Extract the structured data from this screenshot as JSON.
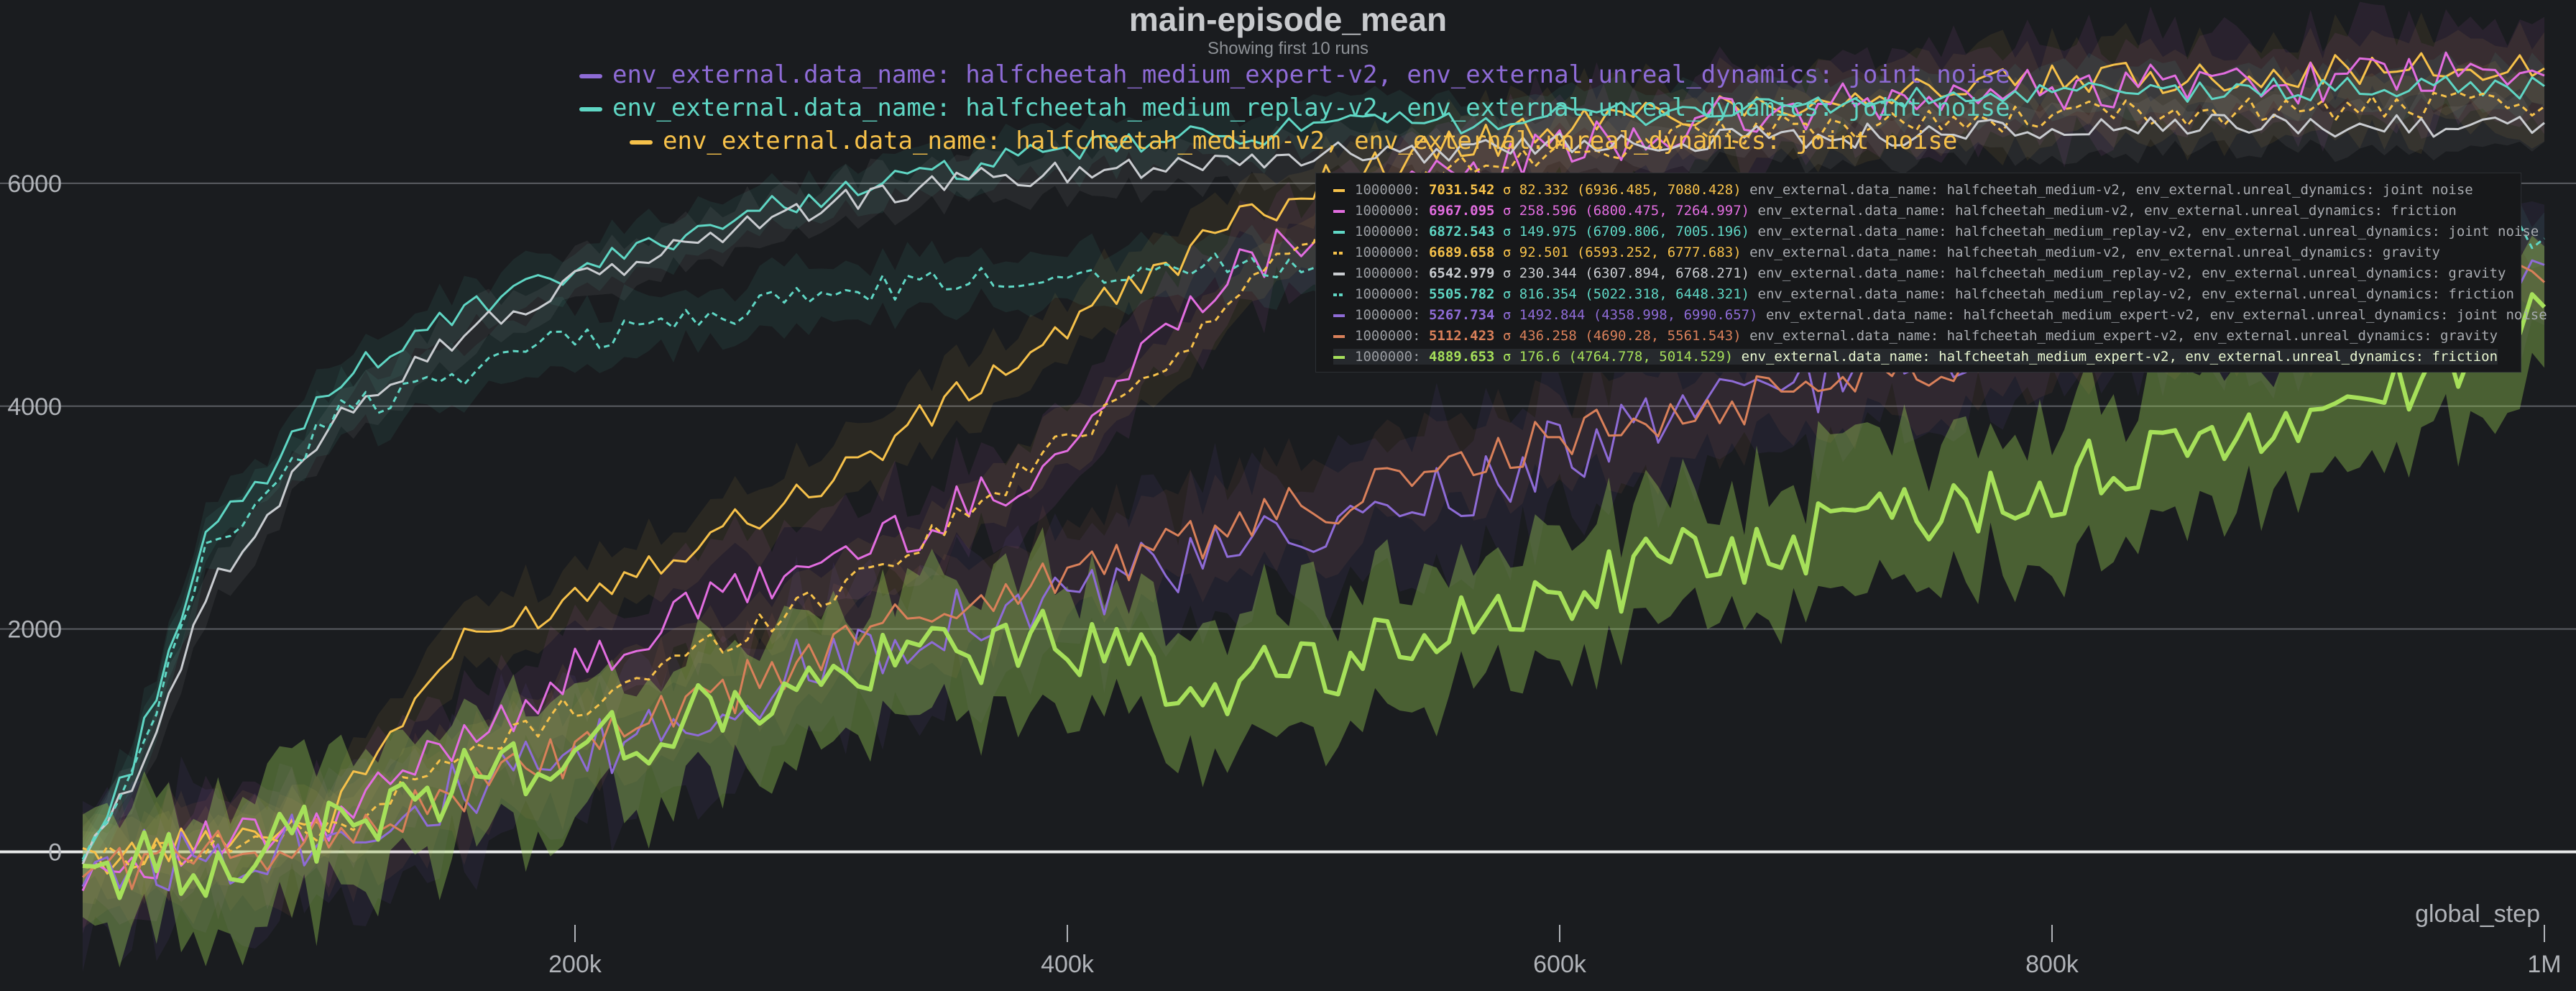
{
  "chart_data": {
    "type": "line",
    "title": "main-episode_mean",
    "subtitle": "Showing first 10 runs",
    "xlabel": "global_step",
    "ylabel": "",
    "xlim": [
      0,
      1000000
    ],
    "ylim": [
      -500,
      7000
    ],
    "x_ticks": [
      200000,
      400000,
      600000,
      800000,
      1000000
    ],
    "x_tick_labels": [
      "200k",
      "400k",
      "600k",
      "800k",
      "1M"
    ],
    "y_ticks": [
      0,
      2000,
      4000,
      6000
    ],
    "y_tick_labels": [
      "0",
      "2000",
      "4000",
      "6000"
    ],
    "grid": true,
    "legend_position": "top-center",
    "legend": [
      {
        "label": "env_external.data_name: halfcheetah_medium_expert-v2, env_external.unreal_dynamics: joint noise",
        "color": "#8e6bd6"
      },
      {
        "label": "env_external.data_name: halfcheetah_medium_replay-v2, env_external.unreal_dynamics: joint noise",
        "color": "#5fd6c4"
      },
      {
        "label": "env_external.data_name: halfcheetah_medium-v2, env_external.unreal_dynamics: joint noise",
        "color": "#f6c14a"
      }
    ],
    "series": [
      {
        "name": "env_external.data_name: halfcheetah_medium-v2, env_external.unreal_dynamics: joint noise",
        "color": "#f6c14a",
        "dashed": false,
        "x": [
          0,
          50000,
          100000,
          150000,
          200000,
          250000,
          300000,
          350000,
          400000,
          450000,
          500000,
          550000,
          600000,
          650000,
          700000,
          750000,
          800000,
          850000,
          900000,
          950000,
          1000000
        ],
        "y": [
          -100,
          100,
          300,
          1800,
          2300,
          2800,
          3300,
          4000,
          4700,
          5400,
          6000,
          6300,
          6500,
          6650,
          6750,
          6850,
          6900,
          6950,
          7000,
          7020,
          7031.542
        ],
        "band": 350
      },
      {
        "name": "env_external.data_name: halfcheetah_medium-v2, env_external.unreal_dynamics: friction",
        "color": "#e26de0",
        "dashed": false,
        "x": [
          0,
          50000,
          100000,
          150000,
          200000,
          250000,
          300000,
          350000,
          400000,
          450000,
          500000,
          550000,
          600000,
          650000,
          700000,
          750000,
          800000,
          850000,
          900000,
          950000,
          1000000
        ],
        "y": [
          -150,
          50,
          200,
          1000,
          1600,
          2200,
          2600,
          3000,
          3600,
          5000,
          5600,
          6000,
          6300,
          6500,
          6650,
          6750,
          6850,
          6900,
          6930,
          6950,
          6967.095
        ],
        "band": 500
      },
      {
        "name": "env_external.data_name: halfcheetah_medium_replay-v2, env_external.unreal_dynamics: joint noise",
        "color": "#5fd6c4",
        "dashed": false,
        "x": [
          0,
          20000,
          50000,
          80000,
          100000,
          150000,
          200000,
          250000,
          300000,
          350000,
          400000,
          450000,
          500000,
          550000,
          600000,
          650000,
          700000,
          750000,
          800000,
          850000,
          900000,
          950000,
          1000000
        ],
        "y": [
          -100,
          800,
          2800,
          3500,
          4200,
          4800,
          5200,
          5600,
          5900,
          6100,
          6300,
          6400,
          6500,
          6550,
          6600,
          6650,
          6700,
          6750,
          6800,
          6820,
          6840,
          6860,
          6872.543
        ],
        "band": 250
      },
      {
        "name": "env_external.data_name: halfcheetah_medium-v2, env_external.unreal_dynamics: gravity",
        "color": "#f6c14a",
        "dashed": true,
        "x": [
          0,
          50000,
          100000,
          150000,
          200000,
          250000,
          300000,
          350000,
          400000,
          450000,
          500000,
          550000,
          600000,
          650000,
          700000,
          750000,
          800000,
          850000,
          900000,
          950000,
          1000000
        ],
        "y": [
          -100,
          50,
          200,
          800,
          1300,
          1800,
          2300,
          2900,
          3700,
          4600,
          5600,
          6100,
          6300,
          6400,
          6500,
          6550,
          6600,
          6630,
          6660,
          6680,
          6689.658
        ],
        "band": 300
      },
      {
        "name": "env_external.data_name: halfcheetah_medium_replay-v2, env_external.unreal_dynamics: gravity",
        "color": "#c9ccd0",
        "dashed": false,
        "x": [
          0,
          20000,
          50000,
          80000,
          100000,
          150000,
          200000,
          250000,
          300000,
          350000,
          400000,
          450000,
          500000,
          550000,
          600000,
          650000,
          700000,
          750000,
          800000,
          850000,
          900000,
          950000,
          1000000
        ],
        "y": [
          -100,
          600,
          2300,
          3100,
          3900,
          4600,
          5100,
          5500,
          5800,
          6000,
          6100,
          6200,
          6250,
          6300,
          6350,
          6400,
          6420,
          6450,
          6480,
          6500,
          6520,
          6530,
          6542.979
        ],
        "band": 250
      },
      {
        "name": "env_external.data_name: halfcheetah_medium_replay-v2, env_external.unreal_dynamics: friction",
        "color": "#5fd6c4",
        "dashed": true,
        "x": [
          0,
          20000,
          50000,
          80000,
          100000,
          150000,
          200000,
          250000,
          300000,
          350000,
          400000,
          450000,
          500000,
          550000,
          600000,
          650000,
          700000,
          750000,
          800000,
          850000,
          900000,
          950000,
          1000000
        ],
        "y": [
          -100,
          600,
          2700,
          3300,
          3900,
          4300,
          4600,
          4800,
          5000,
          5100,
          5200,
          5250,
          5300,
          5350,
          5380,
          5400,
          5420,
          5440,
          5460,
          5480,
          5490,
          5500,
          5505.782
        ],
        "band": 300
      },
      {
        "name": "env_external.data_name: halfcheetah_medium_expert-v2, env_external.unreal_dynamics: joint noise",
        "color": "#8e6bd6",
        "dashed": false,
        "x": [
          0,
          50000,
          100000,
          150000,
          200000,
          250000,
          300000,
          350000,
          400000,
          450000,
          500000,
          550000,
          600000,
          650000,
          700000,
          750000,
          800000,
          850000,
          900000,
          950000,
          1000000
        ],
        "y": [
          -100,
          -50,
          200,
          500,
          800,
          1200,
          1700,
          2100,
          2300,
          2600,
          2800,
          3200,
          3600,
          3900,
          4200,
          4500,
          4700,
          4900,
          5050,
          5200,
          5267.734
        ],
        "band": 700
      },
      {
        "name": "env_external.data_name: halfcheetah_medium_expert-v2, env_external.unreal_dynamics: gravity",
        "color": "#d9805a",
        "dashed": false,
        "x": [
          0,
          50000,
          100000,
          150000,
          200000,
          250000,
          300000,
          350000,
          400000,
          450000,
          500000,
          550000,
          600000,
          650000,
          700000,
          750000,
          800000,
          850000,
          900000,
          950000,
          1000000
        ],
        "y": [
          -150,
          -50,
          150,
          500,
          900,
          1300,
          1800,
          2200,
          2500,
          2800,
          3100,
          3400,
          3700,
          3900,
          4200,
          4400,
          4600,
          4800,
          4950,
          5050,
          5112.423
        ],
        "band": 500
      },
      {
        "name": "env_external.data_name: halfcheetah_medium_expert-v2, env_external.unreal_dynamics: friction",
        "color": "#a6e05a",
        "dashed": false,
        "thick": true,
        "x": [
          0,
          50000,
          100000,
          150000,
          200000,
          250000,
          300000,
          350000,
          400000,
          450000,
          500000,
          550000,
          600000,
          650000,
          700000,
          750000,
          800000,
          850000,
          900000,
          950000,
          1000000
        ],
        "y": [
          -150,
          -100,
          200,
          600,
          900,
          1200,
          1500,
          1800,
          1900,
          1500,
          1600,
          2000,
          2300,
          2600,
          2800,
          3100,
          3300,
          3600,
          3900,
          4200,
          4889.653
        ],
        "band": 700
      }
    ]
  },
  "tooltip": {
    "rows": [
      {
        "step": "1000000:",
        "value": "7031.542",
        "sigma": "σ 82.332",
        "range": "(6936.485, 7080.428)",
        "name": "env_external.data_name: halfcheetah_medium-v2, env_external.unreal_dynamics: joint noise",
        "color": "#f6c14a",
        "dashed": false
      },
      {
        "step": "1000000:",
        "value": "6967.095",
        "sigma": "σ 258.596",
        "range": "(6800.475, 7264.997)",
        "name": "env_external.data_name: halfcheetah_medium-v2, env_external.unreal_dynamics: friction",
        "color": "#e26de0",
        "dashed": false
      },
      {
        "step": "1000000:",
        "value": "6872.543",
        "sigma": "σ 149.975",
        "range": "(6709.806, 7005.196)",
        "name": "env_external.data_name: halfcheetah_medium_replay-v2, env_external.unreal_dynamics: joint noise",
        "color": "#5fd6c4",
        "dashed": false
      },
      {
        "step": "1000000:",
        "value": "6689.658",
        "sigma": "σ 92.501",
        "range": "(6593.252, 6777.683)",
        "name": "env_external.data_name: halfcheetah_medium-v2, env_external.unreal_dynamics: gravity",
        "color": "#f6c14a",
        "dashed": true
      },
      {
        "step": "1000000:",
        "value": "6542.979",
        "sigma": "σ 230.344",
        "range": "(6307.894, 6768.271)",
        "name": "env_external.data_name: halfcheetah_medium_replay-v2, env_external.unreal_dynamics: gravity",
        "color": "#c9ccd0",
        "dashed": false
      },
      {
        "step": "1000000:",
        "value": "5505.782",
        "sigma": "σ 816.354",
        "range": "(5022.318, 6448.321)",
        "name": "env_external.data_name: halfcheetah_medium_replay-v2, env_external.unreal_dynamics: friction",
        "color": "#5fd6c4",
        "dashed": true
      },
      {
        "step": "1000000:",
        "value": "5267.734",
        "sigma": "σ 1492.844",
        "range": "(4358.998, 6990.657)",
        "name": "env_external.data_name: halfcheetah_medium_expert-v2, env_external.unreal_dynamics: joint noise",
        "color": "#8e6bd6",
        "dashed": false
      },
      {
        "step": "1000000:",
        "value": "5112.423",
        "sigma": "σ 436.258",
        "range": "(4690.28, 5561.543)",
        "name": "env_external.data_name: halfcheetah_medium_expert-v2, env_external.unreal_dynamics: gravity",
        "color": "#d9805a",
        "dashed": false
      },
      {
        "step": "1000000:",
        "value": "4889.653",
        "sigma": "σ 176.6",
        "range": "(4764.778, 5014.529)",
        "name": "env_external.data_name: halfcheetah_medium_expert-v2, env_external.unreal_dynamics: friction",
        "color": "#a6e05a",
        "dashed": false,
        "highlight": true
      }
    ]
  }
}
